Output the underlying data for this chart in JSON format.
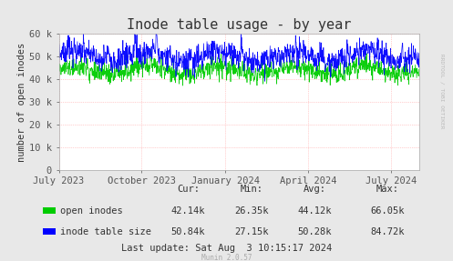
{
  "title": "Inode table usage - by year",
  "ylabel": "number of open inodes",
  "background_color": "#e8e8e8",
  "plot_bg_color": "#ffffff",
  "grid_color": "#ff9999",
  "ylim": [
    0,
    60000
  ],
  "yticks": [
    0,
    10000,
    20000,
    30000,
    40000,
    50000,
    60000
  ],
  "ytick_labels": [
    "0",
    "10 k",
    "20 k",
    "30 k",
    "40 k",
    "50 k",
    "60 k"
  ],
  "xtick_labels": [
    "July 2023",
    "October 2023",
    "January 2024",
    "April 2024",
    "July 2024"
  ],
  "line1_color": "#00cc00",
  "line2_color": "#0000ff",
  "line1_label": "open inodes",
  "line2_label": "inode table size",
  "legend_cur_label": "Cur:",
  "legend_min_label": "Min:",
  "legend_avg_label": "Avg:",
  "legend_max_label": "Max:",
  "line1_cur": "42.14k",
  "line1_min": "26.35k",
  "line1_avg": "44.12k",
  "line1_max": "66.05k",
  "line2_cur": "50.84k",
  "line2_min": "27.15k",
  "line2_avg": "50.28k",
  "line2_max": "84.72k",
  "last_update": "Last update: Sat Aug  3 10:15:17 2024",
  "munin_version": "Munin 2.0.57",
  "rrdtool_label": "RRDTOOL / TOBI OETIKER",
  "title_fontsize": 11,
  "axis_fontsize": 7.5,
  "legend_fontsize": 7.5
}
